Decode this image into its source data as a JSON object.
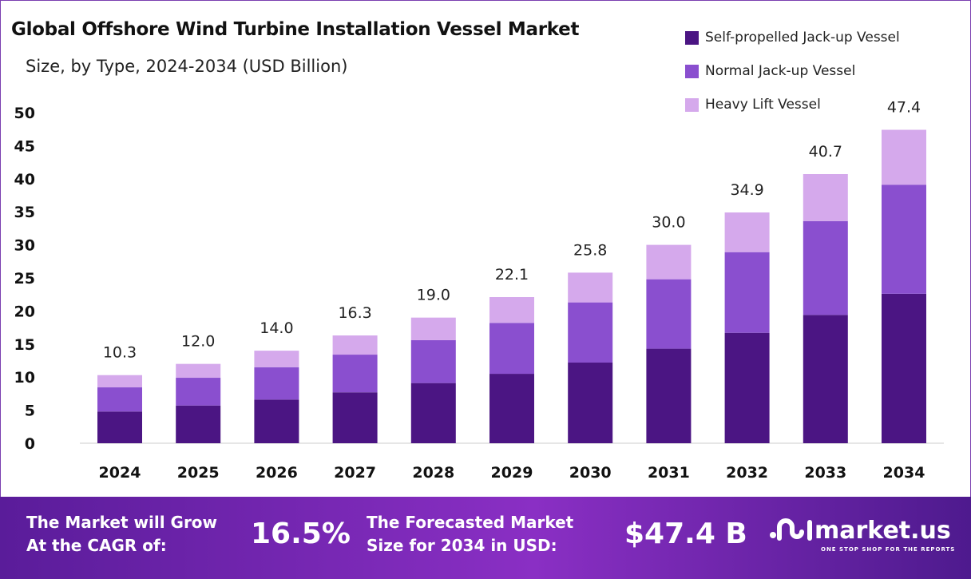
{
  "chart_data": {
    "type": "bar",
    "stacked": true,
    "title": "Global Offshore Wind Turbine Installation Vessel Market",
    "subtitle": "Size, by Type, 2024-2034 (USD Billion)",
    "categories": [
      "2024",
      "2025",
      "2026",
      "2027",
      "2028",
      "2029",
      "2030",
      "2031",
      "2032",
      "2033",
      "2034"
    ],
    "series": [
      {
        "name": "Self-propelled Jack-up Vessel",
        "color": "#4b1583",
        "values": [
          4.8,
          5.7,
          6.6,
          7.7,
          9.1,
          10.5,
          12.2,
          14.3,
          16.7,
          19.4,
          22.6
        ]
      },
      {
        "name": "Normal Jack-up Vessel",
        "color": "#8a4fcf",
        "values": [
          3.65,
          4.2,
          4.9,
          5.7,
          6.5,
          7.7,
          9.1,
          10.5,
          12.2,
          14.2,
          16.5
        ]
      },
      {
        "name": "Heavy Lift Vessel",
        "color": "#d5a9ec",
        "values": [
          1.85,
          2.1,
          2.5,
          2.9,
          3.4,
          3.9,
          4.5,
          5.2,
          6.0,
          7.1,
          8.3
        ]
      }
    ],
    "totals": [
      "10.3",
      "12.0",
      "14.0",
      "16.3",
      "19.0",
      "22.1",
      "25.8",
      "30.0",
      "34.9",
      "40.7",
      "47.4"
    ],
    "ylim": [
      0,
      50
    ],
    "yticks": [
      "0",
      "5",
      "10",
      "15",
      "20",
      "25",
      "30",
      "35",
      "40",
      "45",
      "50"
    ],
    "legend_position": "top-right",
    "grid": false
  },
  "footer": {
    "cagr_label_1": "The Market will Grow",
    "cagr_label_2": "At the CAGR of:",
    "cagr_value": "16.5%",
    "forecast_label_1": "The Forecasted Market",
    "forecast_label_2": "Size for 2034 in USD:",
    "forecast_value": "$47.4 B",
    "logo_text": "market.us",
    "logo_tagline": "ONE STOP SHOP FOR THE REPORTS"
  }
}
